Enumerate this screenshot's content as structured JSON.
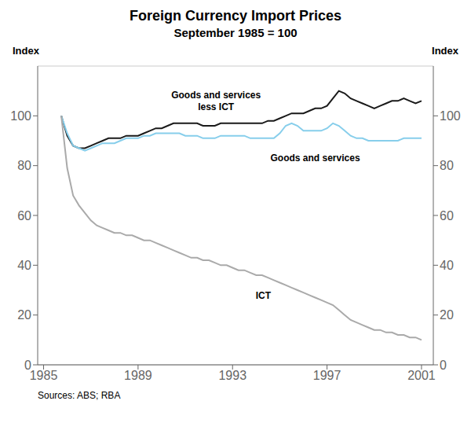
{
  "chart_data": {
    "type": "line",
    "title": "Foreign Currency Import Prices",
    "subtitle": "September 1985 = 100",
    "ylabel": "Index",
    "y2label": "Index",
    "source": "Sources: ABS; RBA",
    "xlim": [
      1984.75,
      2001.5
    ],
    "xticks": [
      1985,
      1989,
      1993,
      1997,
      2001
    ],
    "ylim": [
      0,
      120
    ],
    "yticks": [
      0,
      20,
      40,
      60,
      80,
      100
    ],
    "y2lim": [
      0,
      120
    ],
    "y2ticks": [
      0,
      20,
      40,
      60,
      80,
      100
    ],
    "grid": true,
    "x": [
      1985.75,
      1986.0,
      1986.25,
      1986.5,
      1986.75,
      1987.0,
      1987.25,
      1987.5,
      1987.75,
      1988.0,
      1988.25,
      1988.5,
      1988.75,
      1989.0,
      1989.25,
      1989.5,
      1989.75,
      1990.0,
      1990.25,
      1990.5,
      1990.75,
      1991.0,
      1991.25,
      1991.5,
      1991.75,
      1992.0,
      1992.25,
      1992.5,
      1992.75,
      1993.0,
      1993.25,
      1993.5,
      1993.75,
      1994.0,
      1994.25,
      1994.5,
      1994.75,
      1995.0,
      1995.25,
      1995.5,
      1995.75,
      1996.0,
      1996.25,
      1996.5,
      1996.75,
      1997.0,
      1997.25,
      1997.5,
      1997.75,
      1998.0,
      1998.25,
      1998.5,
      1998.75,
      1999.0,
      1999.25,
      1999.5,
      1999.75,
      2000.0,
      2000.25,
      2000.5,
      2000.75,
      2001.0
    ],
    "series": [
      {
        "color": "#1a1a1a",
        "values": [
          100,
          92,
          88,
          87,
          87,
          88,
          89,
          90,
          91,
          91,
          91,
          92,
          92,
          92,
          93,
          94,
          95,
          95,
          96,
          97,
          97,
          97,
          97,
          97,
          96,
          96,
          96,
          97,
          97,
          97,
          97,
          97,
          97,
          97,
          97,
          98,
          98,
          99,
          100,
          101,
          101,
          101,
          102,
          103,
          103,
          104,
          107,
          110,
          109,
          107,
          106,
          105,
          104,
          103,
          104,
          105,
          106,
          106,
          107,
          106,
          105,
          106
        ]
      },
      {
        "color": "#87ceeb",
        "values": [
          100,
          93,
          88,
          87,
          86,
          87,
          88,
          89,
          89,
          89,
          90,
          91,
          91,
          91,
          92,
          92,
          93,
          93,
          93,
          93,
          93,
          92,
          92,
          92,
          91,
          91,
          91,
          92,
          92,
          92,
          92,
          92,
          91,
          91,
          91,
          91,
          91,
          93,
          96,
          97,
          96,
          94,
          94,
          94,
          94,
          95,
          97,
          96,
          94,
          92,
          91,
          91,
          90,
          90,
          90,
          90,
          90,
          90,
          91,
          91,
          91,
          91
        ]
      },
      {
        "color": "#aaaaaa",
        "values": [
          100,
          79,
          68,
          64,
          61,
          58,
          56,
          55,
          54,
          53,
          53,
          52,
          52,
          51,
          50,
          50,
          49,
          48,
          47,
          46,
          45,
          44,
          43,
          43,
          42,
          42,
          41,
          40,
          40,
          39,
          38,
          38,
          37,
          36,
          36,
          35,
          34,
          33,
          32,
          31,
          30,
          29,
          28,
          27,
          26,
          25,
          24,
          22,
          20,
          18,
          17,
          16,
          15,
          14,
          14,
          13,
          13,
          12,
          12,
          11,
          11,
          10
        ]
      }
    ],
    "annotations": [
      {
        "text": "Goods and services\nless ICT",
        "x": 1992.3,
        "y": 106
      },
      {
        "text": "Goods and services",
        "x": 1996.5,
        "y": 83
      },
      {
        "text": "ICT",
        "x": 1994.3,
        "y": 28
      }
    ]
  }
}
